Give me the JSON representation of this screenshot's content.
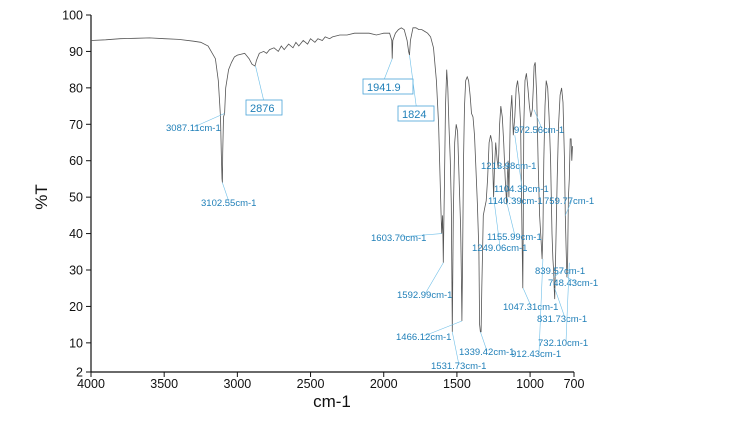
{
  "chart_data": {
    "type": "line",
    "xlabel": "cm-1",
    "ylabel": "%T",
    "xlim": [
      4000,
      700
    ],
    "ylim": [
      2,
      100
    ],
    "x_reversed": true,
    "grid": false,
    "x_ticks": [
      4000,
      3500,
      3000,
      2500,
      2000,
      1500,
      1000,
      700
    ],
    "y_ticks": [
      2,
      10,
      20,
      30,
      40,
      50,
      60,
      70,
      80,
      90,
      100
    ],
    "colors": {
      "spectrum": "#555555",
      "annotation": "#1f7fb8",
      "leader": "#6fbfe8",
      "box": "#4aa3d8"
    },
    "series": [
      {
        "x": [
          4000,
          3900,
          3800,
          3700,
          3600,
          3500,
          3400,
          3300,
          3250,
          3200,
          3150,
          3130,
          3115,
          3110,
          3105,
          3102.55,
          3100,
          3095,
          3087.11,
          3080,
          3060,
          3040,
          3020,
          3000,
          2950,
          2920,
          2900,
          2880,
          2876,
          2870,
          2850,
          2820,
          2800,
          2780,
          2750,
          2720,
          2700,
          2680,
          2650,
          2620,
          2600,
          2580,
          2550,
          2520,
          2500,
          2470,
          2450,
          2420,
          2400,
          2370,
          2350,
          2300,
          2250,
          2200,
          2150,
          2100,
          2050,
          2000,
          1960,
          1945,
          1941.9,
          1938,
          1920,
          1900,
          1880,
          1860,
          1840,
          1830,
          1824,
          1818,
          1800,
          1780,
          1760,
          1740,
          1720,
          1700,
          1680,
          1660,
          1640,
          1625,
          1615,
          1608,
          1603.7,
          1598,
          1595,
          1592.99,
          1590,
          1585,
          1578,
          1570,
          1562,
          1555,
          1545,
          1538,
          1531.73,
          1525,
          1515,
          1505,
          1495,
          1485,
          1475,
          1470,
          1466.12,
          1462,
          1455,
          1448,
          1440,
          1430,
          1420,
          1410,
          1400,
          1390,
          1380,
          1370,
          1360,
          1350,
          1345,
          1339.42,
          1335,
          1330,
          1320,
          1310,
          1300,
          1290,
          1280,
          1270,
          1260,
          1255,
          1249.06,
          1243,
          1235,
          1225,
          1218,
          1213.98,
          1208,
          1200,
          1190,
          1180,
          1170,
          1160,
          1155.99,
          1150,
          1145,
          1140.39,
          1135,
          1125,
          1115,
          1104.39,
          1095,
          1085,
          1075,
          1065,
          1055,
          1050,
          1047.31,
          1043,
          1035,
          1025,
          1015,
          1005,
          995,
          985,
          978,
          972.56,
          965,
          955,
          945,
          935,
          925,
          918,
          912.43,
          906,
          898,
          890,
          880,
          870,
          860,
          850,
          844,
          839.57,
          835,
          831.73,
          825,
          815,
          805,
          795,
          785,
          775,
          765,
          759.77,
          754,
          748.43,
          744,
          738,
          732.1,
          726,
          720,
          715,
          710
        ],
        "y": [
          93,
          93.2,
          93.5,
          93.6,
          93.7,
          93.5,
          93.3,
          92.8,
          92.5,
          91.5,
          88,
          82,
          72,
          62,
          55,
          54,
          62,
          72,
          73,
          80,
          85,
          87,
          88.5,
          89,
          89.5,
          88,
          86.5,
          86,
          86.5,
          87.5,
          89.5,
          90,
          89.5,
          90.5,
          91,
          90,
          91.5,
          90.5,
          92,
          91,
          92.5,
          91.5,
          93,
          92,
          93.5,
          92.5,
          93.5,
          93,
          94,
          93.5,
          94,
          94.5,
          94.5,
          95,
          95,
          95,
          94.5,
          95,
          95,
          93,
          88,
          93,
          95,
          96,
          96.5,
          96,
          93,
          90,
          89,
          93,
          96.5,
          96.5,
          96,
          96,
          95.5,
          95,
          94,
          91,
          82,
          70,
          55,
          45,
          40,
          45,
          38,
          32,
          40,
          55,
          75,
          85,
          80,
          70,
          60,
          48,
          13,
          45,
          65,
          70,
          68,
          55,
          42,
          30,
          16,
          30,
          60,
          75,
          82,
          83,
          82,
          78,
          73,
          72,
          67,
          58,
          48,
          35,
          15,
          13,
          13,
          25,
          45,
          47,
          49,
          55,
          65,
          67,
          65,
          58,
          50,
          58,
          65,
          60,
          58,
          62,
          70,
          75,
          72,
          65,
          55,
          48,
          55,
          60,
          50,
          60,
          72,
          78,
          67,
          72,
          80,
          82,
          78,
          70,
          40,
          25,
          40,
          70,
          82,
          84,
          80,
          75,
          72,
          74,
          80,
          86,
          87,
          78,
          60,
          45,
          38,
          33,
          40,
          60,
          75,
          82,
          80,
          72,
          60,
          40,
          33,
          30,
          25,
          22,
          35,
          55,
          70,
          78,
          80,
          76,
          60,
          45,
          36,
          28,
          32,
          50,
          55,
          66,
          66,
          60,
          64
        ]
      }
    ],
    "annotations": [
      {
        "text": "3087.11cm-1",
        "x": 3087.11,
        "y": 73
      },
      {
        "text": "3102.55cm-1",
        "x": 3102.55,
        "y": 54
      },
      {
        "text": "2876",
        "x": 2876,
        "y": 86,
        "boxed": true
      },
      {
        "text": "1941.9",
        "x": 1941.9,
        "y": 88,
        "boxed": true
      },
      {
        "text": "1824",
        "x": 1824,
        "y": 89,
        "boxed": true
      },
      {
        "text": "1603.70cm-1",
        "x": 1603.7,
        "y": 40
      },
      {
        "text": "1592.99cm-1",
        "x": 1592.99,
        "y": 32
      },
      {
        "text": "1466.12cm-1",
        "x": 1466.12,
        "y": 16
      },
      {
        "text": "1531.73cm-1",
        "x": 1531.73,
        "y": 13
      },
      {
        "text": "1339.42cm-1",
        "x": 1339.42,
        "y": 13
      },
      {
        "text": "1249.06cm-1",
        "x": 1249.06,
        "y": 50
      },
      {
        "text": "1213.98cm-1",
        "x": 1213.98,
        "y": 58
      },
      {
        "text": "1155.99cm-1",
        "x": 1155.99,
        "y": 48
      },
      {
        "text": "1140.39cm-1",
        "x": 1140.39,
        "y": 50
      },
      {
        "text": "1104.39cm-1",
        "x": 1104.39,
        "y": 67
      },
      {
        "text": "1047.31cm-1",
        "x": 1047.31,
        "y": 25
      },
      {
        "text": "972.56cm-1",
        "x": 972.56,
        "y": 74
      },
      {
        "text": "912.43cm-1",
        "x": 912.43,
        "y": 33
      },
      {
        "text": "839.57cm-1",
        "x": 839.57,
        "y": 28
      },
      {
        "text": "831.73cm-1",
        "x": 831.73,
        "y": 25
      },
      {
        "text": "759.77cm-1",
        "x": 759.77,
        "y": 45
      },
      {
        "text": "748.43cm-1",
        "x": 748.43,
        "y": 28
      },
      {
        "text": "732.10cm-1",
        "x": 732.1,
        "y": 32
      }
    ]
  }
}
